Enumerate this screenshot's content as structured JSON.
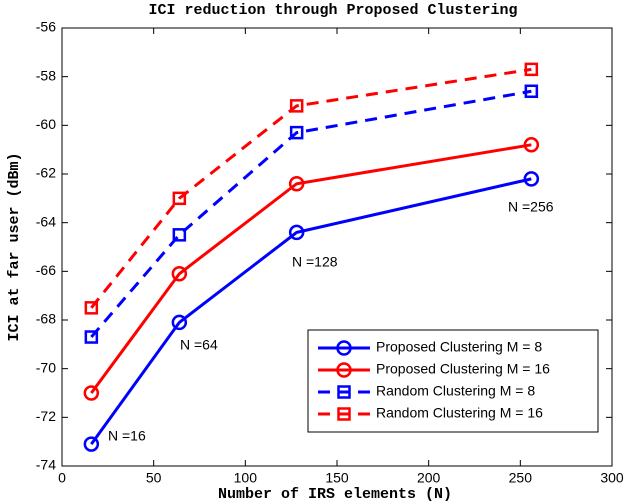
{
  "chart_data": {
    "type": "line",
    "title": "ICI reduction through Proposed Clustering",
    "x_label": "Number of IRS elements (N)",
    "y_label": "ICI at far user (dBm)",
    "x": [
      16,
      64,
      128,
      256
    ],
    "series": [
      {
        "name": "Proposed Clustering M = 8",
        "color": "#0000ff",
        "linestyle": "solid",
        "marker": "circle",
        "values": [
          -73.1,
          -68.1,
          -64.4,
          -62.2
        ]
      },
      {
        "name": "Proposed Clustering M = 16",
        "color": "#ff0000",
        "linestyle": "solid",
        "marker": "circle",
        "values": [
          -71.0,
          -66.1,
          -62.4,
          -60.8
        ]
      },
      {
        "name": "Random Clustering M = 8",
        "color": "#0000ff",
        "linestyle": "dashed",
        "marker": "square",
        "values": [
          -68.7,
          -64.5,
          -60.3,
          -58.6
        ]
      },
      {
        "name": "Random Clustering M = 16",
        "color": "#ff0000",
        "linestyle": "dashed",
        "marker": "square",
        "values": [
          -67.5,
          -63.0,
          -59.2,
          -57.7
        ]
      }
    ],
    "annotations": [
      "N =16",
      "N =64",
      "N =128",
      "N =256"
    ],
    "xlim": [
      0,
      300
    ],
    "xticks": [
      0,
      50,
      100,
      150,
      200,
      250,
      300
    ],
    "ylim": [
      -74,
      -56
    ],
    "yticks": [
      -74,
      -72,
      -70,
      -68,
      -66,
      -64,
      -62,
      -60,
      -58,
      -56
    ],
    "legend": "lower right"
  }
}
